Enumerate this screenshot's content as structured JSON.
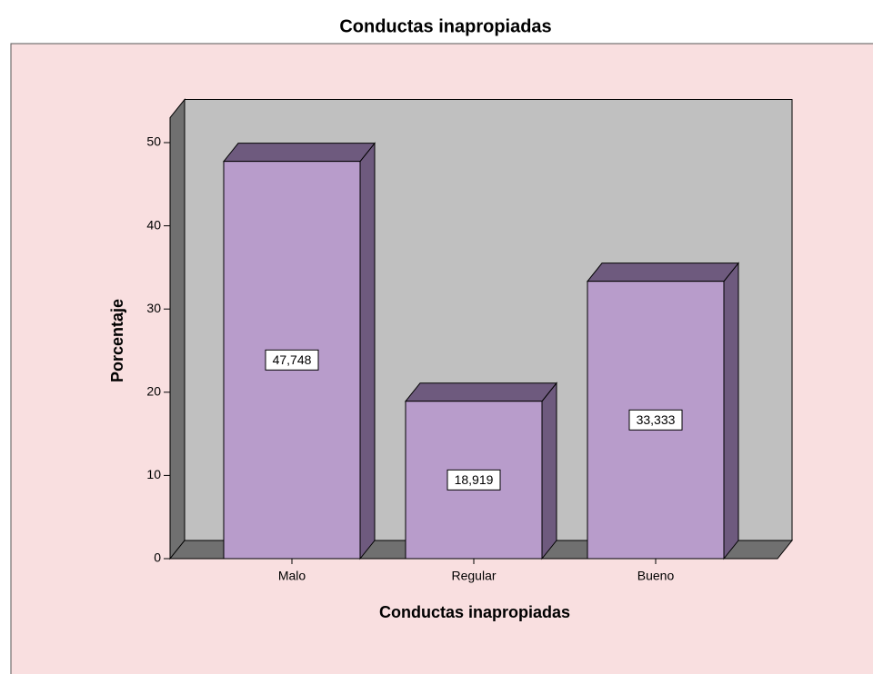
{
  "chart_data": {
    "type": "bar",
    "title": "Conductas inapropiadas",
    "x_label": "Conductas inapropiadas",
    "y_label": "Porcentaje",
    "categories": [
      "Malo",
      "Regular",
      "Bueno"
    ],
    "values": [
      47.748,
      18.919,
      33.333
    ],
    "value_labels": [
      "47,748",
      "18,919",
      "33,333"
    ],
    "color": "#b89ccb",
    "ylim": [
      0,
      53
    ],
    "yticks": [
      0,
      10,
      20,
      30,
      40,
      50
    ]
  }
}
